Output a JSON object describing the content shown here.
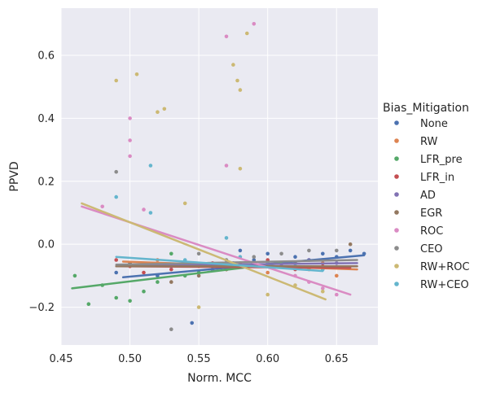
{
  "chart_data": {
    "type": "scatter",
    "xlabel": "Norm. MCC",
    "ylabel": "PPVD",
    "xlim": [
      0.45,
      0.68
    ],
    "ylim": [
      -0.32,
      0.75
    ],
    "x_ticks": [
      0.45,
      0.5,
      0.55,
      0.6,
      0.65
    ],
    "x_tick_labels": [
      "0.45",
      "0.50",
      "0.55",
      "0.60",
      "0.65"
    ],
    "y_ticks": [
      -0.2,
      0.0,
      0.2,
      0.4,
      0.6
    ],
    "y_tick_labels": [
      "−0.2",
      "0.0",
      "0.2",
      "0.4",
      "0.6"
    ],
    "grid": true,
    "background": "#eaeaf2",
    "legend": {
      "title": "Bias_Mitigation",
      "placement": "right-outside"
    },
    "series": [
      {
        "name": "None",
        "color": "#4c72b0",
        "points": [
          [
            0.49,
            -0.09
          ],
          [
            0.52,
            -0.1
          ],
          [
            0.545,
            -0.25
          ],
          [
            0.56,
            -0.07
          ],
          [
            0.575,
            -0.06
          ],
          [
            0.58,
            -0.02
          ],
          [
            0.59,
            -0.05
          ],
          [
            0.6,
            -0.03
          ],
          [
            0.61,
            -0.06
          ],
          [
            0.62,
            -0.04
          ],
          [
            0.63,
            -0.05
          ],
          [
            0.64,
            -0.03
          ],
          [
            0.65,
            -0.04
          ],
          [
            0.66,
            -0.02
          ],
          [
            0.67,
            -0.03
          ]
        ],
        "fit": {
          "x": [
            0.495,
            0.67
          ],
          "y": [
            -0.105,
            -0.035
          ]
        }
      },
      {
        "name": "RW",
        "color": "#dd8452",
        "points": [
          [
            0.52,
            -0.05
          ],
          [
            0.55,
            -0.07
          ],
          [
            0.57,
            -0.08
          ],
          [
            0.58,
            -0.06
          ],
          [
            0.6,
            -0.09
          ],
          [
            0.61,
            -0.07
          ],
          [
            0.63,
            -0.08
          ],
          [
            0.64,
            -0.06
          ],
          [
            0.65,
            -0.1
          ]
        ],
        "fit": {
          "x": [
            0.495,
            0.665
          ],
          "y": [
            -0.055,
            -0.08
          ]
        }
      },
      {
        "name": "LFR_pre",
        "color": "#55a868",
        "points": [
          [
            0.46,
            -0.1
          ],
          [
            0.47,
            -0.19
          ],
          [
            0.48,
            -0.13
          ],
          [
            0.49,
            -0.17
          ],
          [
            0.5,
            -0.18
          ],
          [
            0.51,
            -0.15
          ],
          [
            0.52,
            -0.12
          ],
          [
            0.53,
            -0.03
          ],
          [
            0.54,
            -0.1
          ],
          [
            0.55,
            -0.09
          ],
          [
            0.56,
            -0.08
          ],
          [
            0.58,
            -0.07
          ],
          [
            0.6,
            -0.06
          ]
        ],
        "fit": {
          "x": [
            0.458,
            0.61
          ],
          "y": [
            -0.14,
            -0.06
          ]
        }
      },
      {
        "name": "LFR_in",
        "color": "#c44e52",
        "points": [
          [
            0.49,
            -0.05
          ],
          [
            0.5,
            -0.07
          ],
          [
            0.51,
            -0.09
          ],
          [
            0.53,
            -0.08
          ],
          [
            0.56,
            -0.06
          ],
          [
            0.58,
            -0.07
          ],
          [
            0.6,
            -0.05
          ],
          [
            0.62,
            -0.08
          ],
          [
            0.64,
            -0.07
          ]
        ],
        "fit": {
          "x": [
            0.49,
            0.66
          ],
          "y": [
            -0.07,
            -0.075
          ]
        }
      },
      {
        "name": "AD",
        "color": "#8172b3",
        "points": [
          [
            0.5,
            -0.06
          ],
          [
            0.53,
            -0.07
          ],
          [
            0.56,
            -0.08
          ],
          [
            0.59,
            -0.06
          ],
          [
            0.61,
            -0.07
          ],
          [
            0.63,
            -0.05
          ],
          [
            0.65,
            -0.06
          ]
        ],
        "fit": {
          "x": [
            0.495,
            0.665
          ],
          "y": [
            -0.068,
            -0.06
          ]
        }
      },
      {
        "name": "EGR",
        "color": "#937860",
        "points": [
          [
            0.5,
            -0.06
          ],
          [
            0.53,
            -0.12
          ],
          [
            0.55,
            -0.1
          ],
          [
            0.57,
            -0.08
          ],
          [
            0.6,
            -0.07
          ],
          [
            0.62,
            -0.06
          ],
          [
            0.64,
            -0.05
          ],
          [
            0.66,
            0.0
          ]
        ],
        "fit": {
          "x": [
            0.49,
            0.665
          ],
          "y": [
            -0.07,
            -0.07
          ]
        }
      },
      {
        "name": "ROC",
        "color": "#da8bc3",
        "points": [
          [
            0.48,
            0.12
          ],
          [
            0.5,
            0.4
          ],
          [
            0.5,
            0.28
          ],
          [
            0.5,
            0.33
          ],
          [
            0.51,
            0.11
          ],
          [
            0.57,
            0.66
          ],
          [
            0.57,
            0.25
          ],
          [
            0.59,
            0.7
          ],
          [
            0.6,
            -0.07
          ],
          [
            0.62,
            -0.1
          ],
          [
            0.63,
            -0.12
          ],
          [
            0.64,
            -0.14
          ],
          [
            0.65,
            -0.16
          ]
        ],
        "fit": {
          "x": [
            0.465,
            0.66
          ],
          "y": [
            0.12,
            -0.16
          ]
        }
      },
      {
        "name": "CEO",
        "color": "#8c8c8c",
        "points": [
          [
            0.49,
            0.23
          ],
          [
            0.53,
            -0.27
          ],
          [
            0.55,
            -0.03
          ],
          [
            0.57,
            -0.05
          ],
          [
            0.59,
            -0.04
          ],
          [
            0.61,
            -0.03
          ],
          [
            0.63,
            -0.02
          ],
          [
            0.65,
            -0.02
          ]
        ],
        "fit": {
          "x": [
            0.49,
            0.665
          ],
          "y": [
            -0.065,
            -0.05
          ]
        }
      },
      {
        "name": "RW+ROC",
        "color": "#ccb974",
        "points": [
          [
            0.49,
            0.52
          ],
          [
            0.505,
            0.54
          ],
          [
            0.52,
            0.42
          ],
          [
            0.525,
            0.43
          ],
          [
            0.54,
            0.13
          ],
          [
            0.575,
            0.57
          ],
          [
            0.578,
            0.52
          ],
          [
            0.58,
            0.49
          ],
          [
            0.585,
            0.67
          ],
          [
            0.58,
            0.24
          ],
          [
            0.55,
            -0.2
          ],
          [
            0.6,
            -0.16
          ],
          [
            0.62,
            -0.13
          ],
          [
            0.64,
            -0.15
          ]
        ],
        "fit": {
          "x": [
            0.465,
            0.642
          ],
          "y": [
            0.13,
            -0.175
          ]
        }
      },
      {
        "name": "RW+CEO",
        "color": "#64b5cd",
        "points": [
          [
            0.49,
            0.15
          ],
          [
            0.515,
            0.25
          ],
          [
            0.515,
            0.1
          ],
          [
            0.54,
            -0.05
          ],
          [
            0.57,
            0.02
          ],
          [
            0.58,
            -0.04
          ],
          [
            0.6,
            -0.06
          ],
          [
            0.62,
            -0.07
          ],
          [
            0.64,
            -0.08
          ]
        ],
        "fit": {
          "x": [
            0.49,
            0.64
          ],
          "y": [
            -0.04,
            -0.085
          ]
        }
      }
    ]
  }
}
